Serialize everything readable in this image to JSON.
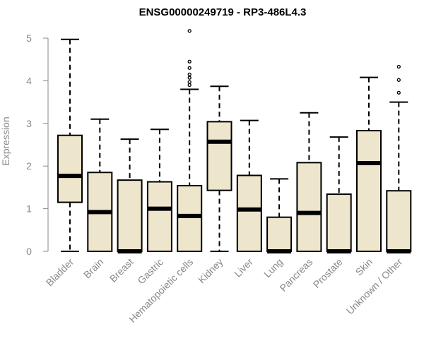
{
  "chart_data": {
    "type": "boxplot",
    "title": "ENSG00000249719 - RP3-486L4.3",
    "xlabel": "",
    "ylabel": "Expression",
    "ylim": [
      0,
      5.3
    ],
    "yticks": [
      0,
      1,
      2,
      3,
      4,
      5
    ],
    "box_color": "#ede6cd",
    "categories": [
      "Bladder",
      "Brain",
      "Breast",
      "Gastric",
      "Hematopoietic cells",
      "Kidney",
      "Liver",
      "Lung",
      "Pancreas",
      "Prostate",
      "Skin",
      "Unknown / Other"
    ],
    "boxes": [
      {
        "min": 0.0,
        "q1": 1.15,
        "median": 1.77,
        "q3": 2.72,
        "max": 4.97,
        "outliers": []
      },
      {
        "min": 0.0,
        "q1": 0.0,
        "median": 0.92,
        "q3": 1.85,
        "max": 3.1,
        "outliers": []
      },
      {
        "min": 0.0,
        "q1": 0.0,
        "median": 0.0,
        "q3": 1.67,
        "max": 2.63,
        "outliers": []
      },
      {
        "min": 0.0,
        "q1": 0.0,
        "median": 1.0,
        "q3": 1.63,
        "max": 2.86,
        "outliers": []
      },
      {
        "min": 0.0,
        "q1": 0.0,
        "median": 0.83,
        "q3": 1.54,
        "max": 3.8,
        "outliers": [
          3.9,
          3.97,
          4.07,
          4.15,
          4.3,
          4.45,
          5.17
        ]
      },
      {
        "min": 0.0,
        "q1": 1.43,
        "median": 2.57,
        "q3": 3.04,
        "max": 3.87,
        "outliers": []
      },
      {
        "min": 0.0,
        "q1": 0.0,
        "median": 0.98,
        "q3": 1.78,
        "max": 3.07,
        "outliers": []
      },
      {
        "min": 0.0,
        "q1": 0.0,
        "median": 0.0,
        "q3": 0.8,
        "max": 1.7,
        "outliers": []
      },
      {
        "min": 0.0,
        "q1": 0.0,
        "median": 0.9,
        "q3": 2.08,
        "max": 3.25,
        "outliers": []
      },
      {
        "min": 0.0,
        "q1": 0.0,
        "median": 0.0,
        "q3": 1.34,
        "max": 2.68,
        "outliers": []
      },
      {
        "min": 0.0,
        "q1": 0.0,
        "median": 2.07,
        "q3": 2.83,
        "max": 4.08,
        "outliers": []
      },
      {
        "min": 0.0,
        "q1": 0.0,
        "median": 0.0,
        "q3": 1.42,
        "max": 3.5,
        "outliers": [
          3.72,
          4.02,
          4.33
        ]
      }
    ]
  }
}
